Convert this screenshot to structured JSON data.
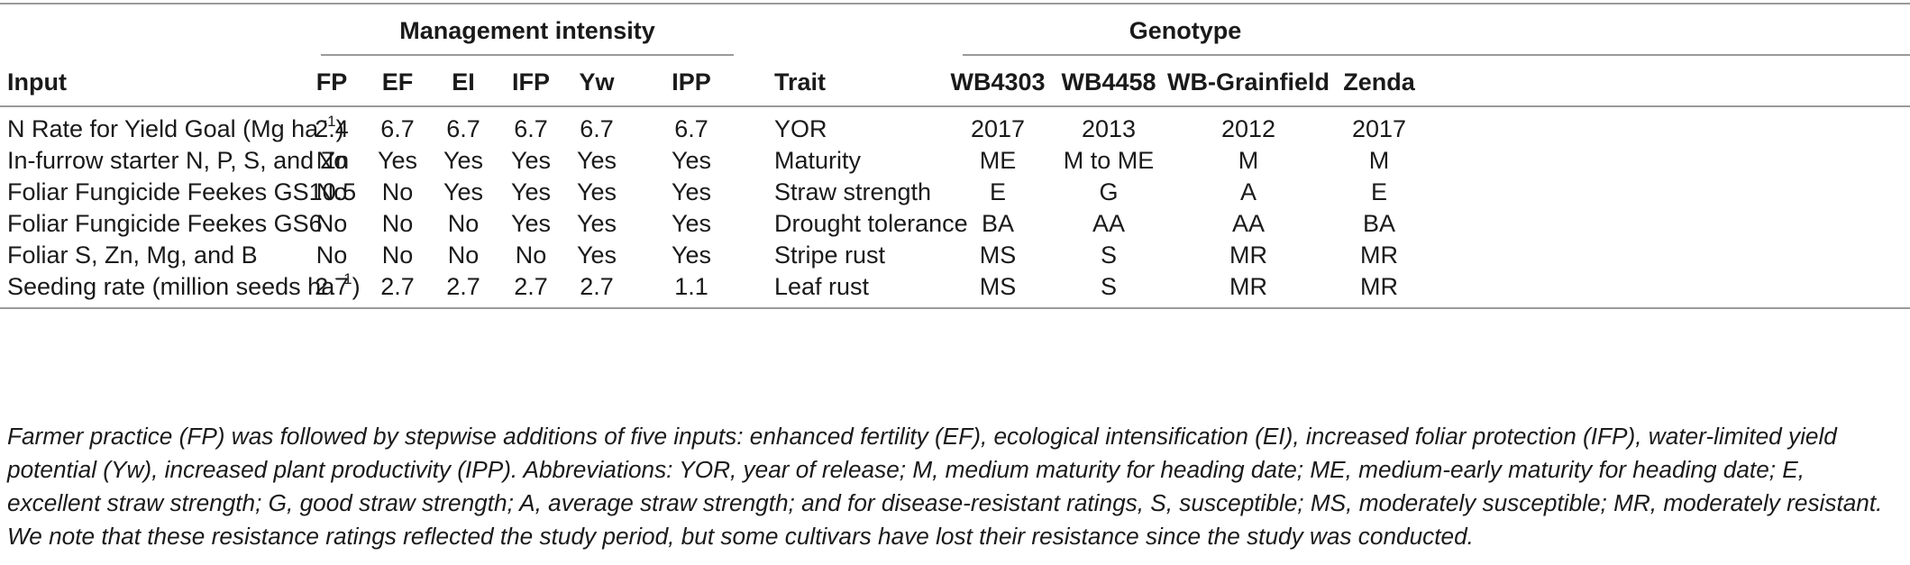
{
  "group_headers": {
    "management": "Management intensity",
    "genotype": "Genotype"
  },
  "columns": {
    "input": "Input",
    "fp": "FP",
    "ef": "EF",
    "ei": "EI",
    "ifp": "IFP",
    "yw": "Yw",
    "ipp": "IPP",
    "trait": "Trait",
    "wb4303": "WB4303",
    "wb4458": "WB4458",
    "wbgrainfield": "WB-Grainfield",
    "zenda": "Zenda"
  },
  "rows": [
    {
      "input": "N Rate for Yield Goal (Mg ha",
      "input_sup": "−1",
      "input_tail": ")",
      "fp": "2.4",
      "ef": "6.7",
      "ei": "6.7",
      "ifp": "6.7",
      "yw": "6.7",
      "ipp": "6.7",
      "trait": "YOR",
      "wb4303": "2017",
      "wb4458": "2013",
      "wbgrainfield": "2012",
      "zenda": "2017"
    },
    {
      "input": "In-furrow starter N, P, S, and Zn",
      "input_sup": "",
      "input_tail": "",
      "fp": "No",
      "ef": "Yes",
      "ei": "Yes",
      "ifp": "Yes",
      "yw": "Yes",
      "ipp": "Yes",
      "trait": "Maturity",
      "wb4303": "ME",
      "wb4458": "M to ME",
      "wbgrainfield": "M",
      "zenda": "M"
    },
    {
      "input": "Foliar Fungicide Feekes GS10.5",
      "input_sup": "",
      "input_tail": "",
      "fp": "No",
      "ef": "No",
      "ei": "Yes",
      "ifp": "Yes",
      "yw": "Yes",
      "ipp": "Yes",
      "trait": "Straw strength",
      "wb4303": "E",
      "wb4458": "G",
      "wbgrainfield": "A",
      "zenda": "E"
    },
    {
      "input": "Foliar Fungicide Feekes GS6",
      "input_sup": "",
      "input_tail": "",
      "fp": "No",
      "ef": "No",
      "ei": "No",
      "ifp": "Yes",
      "yw": "Yes",
      "ipp": "Yes",
      "trait": "Drought tolerance",
      "wb4303": "BA",
      "wb4458": "AA",
      "wbgrainfield": "AA",
      "zenda": "BA"
    },
    {
      "input": "Foliar S, Zn, Mg, and B",
      "input_sup": "",
      "input_tail": "",
      "fp": "No",
      "ef": "No",
      "ei": "No",
      "ifp": "No",
      "yw": "Yes",
      "ipp": "Yes",
      "trait": "Stripe rust",
      "wb4303": "MS",
      "wb4458": "S",
      "wbgrainfield": "MR",
      "zenda": "MR"
    },
    {
      "input": "Seeding rate (million seeds ha",
      "input_sup": "−1",
      "input_tail": ")",
      "fp": "2.7",
      "ef": "2.7",
      "ei": "2.7",
      "ifp": "2.7",
      "yw": "2.7",
      "ipp": "1.1",
      "trait": "Leaf rust",
      "wb4303": "MS",
      "wb4458": "S",
      "wbgrainfield": "MR",
      "zenda": "MR"
    }
  ],
  "caption": "Farmer practice (FP) was followed by stepwise additions of five inputs: enhanced fertility (EF), ecological intensification (EI), increased foliar protection (IFP), water-limited yield potential (Yw), increased plant productivity (IPP). Abbreviations: YOR, year of release; M, medium maturity for heading date; ME, medium-early maturity for heading date; E, excellent straw strength; G, good straw strength; A, average straw strength; and for disease-resistant ratings, S, susceptible; MS, moderately susceptible; MR, moderately resistant. We note that these resistance ratings reflected the study period, but some cultivars have lost their resistance since the study was conducted."
}
